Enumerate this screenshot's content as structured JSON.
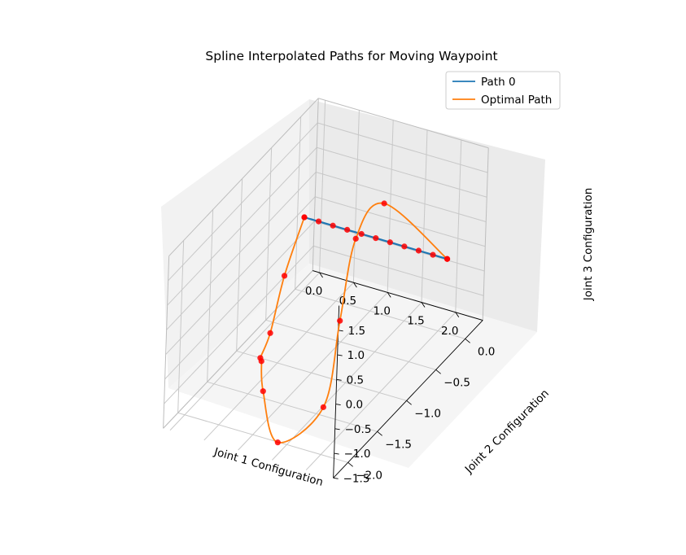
{
  "chart_data": {
    "type": "line",
    "title": "Spline Interpolated Paths for Moving Waypoint",
    "xlabel": "Joint 1 Configuration",
    "ylabel": "Joint 2 Configuration",
    "zlabel": "Joint 3 Configuration",
    "x_ticks": [
      "0.0",
      "0.5",
      "1.0",
      "1.5",
      "2.0"
    ],
    "y_ticks": [
      "0.0",
      "−0.5",
      "−1.0",
      "−1.5",
      "−2.0"
    ],
    "z_ticks": [
      "1.5",
      "1.0",
      "0.5",
      "0.0",
      "−0.5",
      "−1.0",
      "−1.5"
    ],
    "xlim": [
      -0.1,
      2.4
    ],
    "ylim": [
      -2.25,
      0.3
    ],
    "zlim": [
      -1.5,
      2.0
    ],
    "grid": true,
    "legend_position": "top-right",
    "colors": {
      "path0": "#1f77b4",
      "optimal": "#ff7f0e",
      "waypoints": "#ff0000",
      "pane_left": "#f2f2f2",
      "pane_back": "#ebebeb",
      "pane_floor": "#f5f5f5"
    },
    "series": [
      {
        "name": "Path 0",
        "points": [
          [
            0,
            0,
            0
          ],
          [
            0.21,
            0,
            0
          ],
          [
            0.42,
            0,
            0
          ],
          [
            0.63,
            0,
            0
          ],
          [
            0.84,
            0,
            0
          ],
          [
            1.05,
            0,
            0
          ],
          [
            1.26,
            0,
            0
          ],
          [
            1.47,
            0,
            0
          ],
          [
            1.68,
            0,
            0
          ],
          [
            1.89,
            0,
            0
          ],
          [
            2.1,
            0,
            0
          ]
        ]
      },
      {
        "name": "Optimal Path",
        "points": [
          [
            0,
            0,
            0
          ],
          [
            0.15,
            -0.5,
            -0.5
          ],
          [
            0.3,
            -0.9,
            -1.1
          ],
          [
            0.25,
            -1.0,
            -1.5
          ],
          [
            0.35,
            -1.1,
            -1.4
          ],
          [
            0.8,
            -1.6,
            -1.2
          ],
          [
            1.45,
            -2.1,
            -1.35
          ],
          [
            1.85,
            -1.8,
            -0.85
          ],
          [
            1.72,
            -1.4,
            0.35
          ],
          [
            1.5,
            -0.9,
            1.3
          ],
          [
            1.65,
            -0.6,
            1.7
          ],
          [
            2.1,
            0,
            0
          ]
        ]
      }
    ]
  }
}
